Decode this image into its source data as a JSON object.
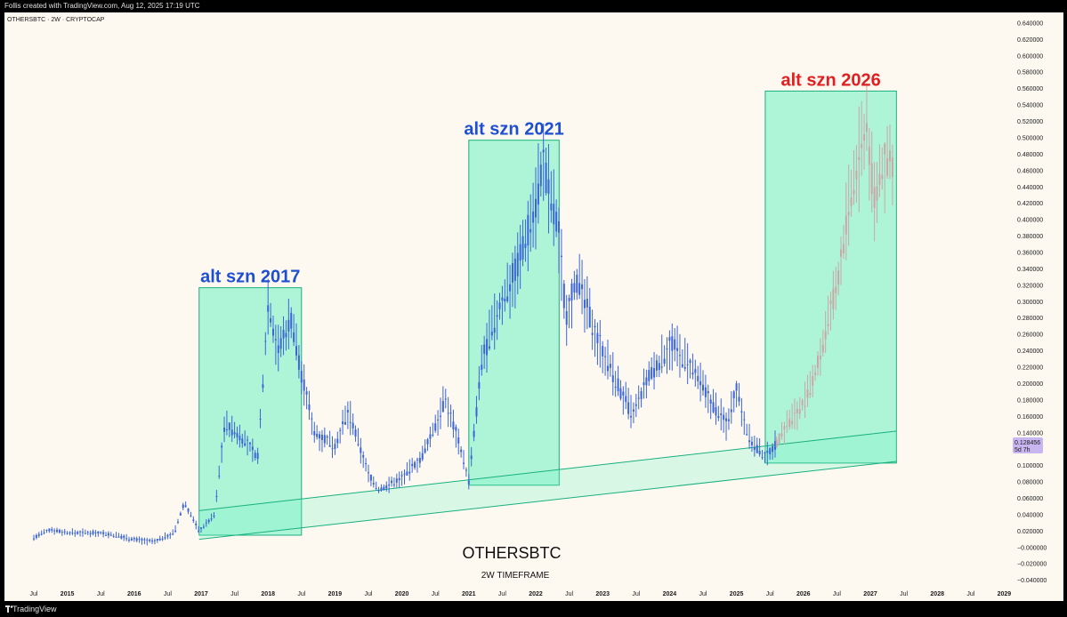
{
  "window": {
    "credit": "Follis created with TradingView.com, Aug 12, 2025 17:19 UTC",
    "brand": "TradingView"
  },
  "colors": {
    "background": "#fdf9f1",
    "candle_up": "#3a64d8",
    "candle_projection": "#c9a7a7",
    "highlight_fill": "#6ef2c2",
    "highlight_stroke": "#18b07e",
    "label_blue": "#1f4fd1",
    "label_red": "#e02020",
    "price_tag": "#c7b6f0"
  },
  "chart_data": {
    "type": "candlestick",
    "symbol_line": "OTHERSBTC · 2W · CRYPTOCAP",
    "title": "OTHERSBTC",
    "subtitle": "2W TIMEFRAME",
    "last_price": "0.128456",
    "countdown": "5d 7h",
    "ylim": [
      -0.04,
      0.65
    ],
    "y_ticks": [
      "0.640000",
      "0.620000",
      "0.600000",
      "0.580000",
      "0.560000",
      "0.540000",
      "0.520000",
      "0.500000",
      "0.480000",
      "0.460000",
      "0.440000",
      "0.420000",
      "0.400000",
      "0.380000",
      "0.360000",
      "0.340000",
      "0.320000",
      "0.300000",
      "0.280000",
      "0.260000",
      "0.240000",
      "0.220000",
      "0.200000",
      "0.180000",
      "0.160000",
      "0.140000",
      "0.120000",
      "0.100000",
      "0.080000",
      "0.060000",
      "0.040000",
      "0.020000",
      "−0.000000",
      "−0.020000",
      "−0.040000"
    ],
    "x_ticks": [
      {
        "label": "Jul",
        "t": 2014.5,
        "bold": false
      },
      {
        "label": "2015",
        "t": 2015.0,
        "bold": true
      },
      {
        "label": "Jul",
        "t": 2015.5,
        "bold": false
      },
      {
        "label": "2016",
        "t": 2016.0,
        "bold": true
      },
      {
        "label": "Jul",
        "t": 2016.5,
        "bold": false
      },
      {
        "label": "2017",
        "t": 2017.0,
        "bold": true
      },
      {
        "label": "Jul",
        "t": 2017.5,
        "bold": false
      },
      {
        "label": "2018",
        "t": 2018.0,
        "bold": true
      },
      {
        "label": "Jul",
        "t": 2018.5,
        "bold": false
      },
      {
        "label": "2019",
        "t": 2019.0,
        "bold": true
      },
      {
        "label": "Jul",
        "t": 2019.5,
        "bold": false
      },
      {
        "label": "2020",
        "t": 2020.0,
        "bold": true
      },
      {
        "label": "Jul",
        "t": 2020.5,
        "bold": false
      },
      {
        "label": "2021",
        "t": 2021.0,
        "bold": true
      },
      {
        "label": "Jul",
        "t": 2021.5,
        "bold": false
      },
      {
        "label": "2022",
        "t": 2022.0,
        "bold": true
      },
      {
        "label": "Jul",
        "t": 2022.5,
        "bold": false
      },
      {
        "label": "2023",
        "t": 2023.0,
        "bold": true
      },
      {
        "label": "Jul",
        "t": 2023.5,
        "bold": false
      },
      {
        "label": "2024",
        "t": 2024.0,
        "bold": true
      },
      {
        "label": "Jul",
        "t": 2024.5,
        "bold": false
      },
      {
        "label": "2025",
        "t": 2025.0,
        "bold": true
      },
      {
        "label": "Jul",
        "t": 2025.5,
        "bold": false
      },
      {
        "label": "2026",
        "t": 2026.0,
        "bold": true
      },
      {
        "label": "Jul",
        "t": 2026.5,
        "bold": false
      },
      {
        "label": "2027",
        "t": 2027.0,
        "bold": true
      },
      {
        "label": "Jul",
        "t": 2027.5,
        "bold": false
      },
      {
        "label": "2028",
        "t": 2028.0,
        "bold": true
      },
      {
        "label": "Jul",
        "t": 2028.5,
        "bold": false
      },
      {
        "label": "2029",
        "t": 2029.0,
        "bold": true
      }
    ],
    "highlights": [
      {
        "label": "alt szn 2017",
        "color": "blue",
        "t0": 2016.97,
        "t1": 2018.5,
        "y0": 0.015,
        "y1": 0.317
      },
      {
        "label": "alt szn 2021",
        "color": "blue",
        "t0": 2021.0,
        "t1": 2022.35,
        "y0": 0.076,
        "y1": 0.497
      },
      {
        "label": "alt szn 2026",
        "color": "red",
        "t0": 2025.43,
        "t1": 2027.39,
        "y0": 0.103,
        "y1": 0.557
      }
    ],
    "channel": {
      "upper": [
        [
          2016.97,
          0.045
        ],
        [
          2027.39,
          0.142
        ]
      ],
      "lower": [
        [
          2016.97,
          0.01
        ],
        [
          2027.39,
          0.105
        ]
      ]
    },
    "historical_path": [
      [
        2014.5,
        0.012
      ],
      [
        2014.75,
        0.022
      ],
      [
        2015.0,
        0.018
      ],
      [
        2015.5,
        0.018
      ],
      [
        2016.0,
        0.01
      ],
      [
        2016.3,
        0.007
      ],
      [
        2016.6,
        0.018
      ],
      [
        2016.75,
        0.055
      ],
      [
        2016.97,
        0.02
      ],
      [
        2017.2,
        0.04
      ],
      [
        2017.35,
        0.15
      ],
      [
        2017.6,
        0.135
      ],
      [
        2017.85,
        0.11
      ],
      [
        2018.0,
        0.3
      ],
      [
        2018.15,
        0.24
      ],
      [
        2018.35,
        0.28
      ],
      [
        2018.5,
        0.21
      ],
      [
        2018.7,
        0.14
      ],
      [
        2019.0,
        0.125
      ],
      [
        2019.2,
        0.165
      ],
      [
        2019.5,
        0.09
      ],
      [
        2019.65,
        0.07
      ],
      [
        2020.0,
        0.085
      ],
      [
        2020.3,
        0.11
      ],
      [
        2020.65,
        0.18
      ],
      [
        2020.85,
        0.13
      ],
      [
        2021.0,
        0.08
      ],
      [
        2021.2,
        0.23
      ],
      [
        2021.5,
        0.3
      ],
      [
        2021.75,
        0.35
      ],
      [
        2022.0,
        0.42
      ],
      [
        2022.1,
        0.47
      ],
      [
        2022.35,
        0.38
      ],
      [
        2022.45,
        0.28
      ],
      [
        2022.6,
        0.33
      ],
      [
        2022.9,
        0.26
      ],
      [
        2023.1,
        0.22
      ],
      [
        2023.45,
        0.16
      ],
      [
        2023.7,
        0.21
      ],
      [
        2023.9,
        0.23
      ],
      [
        2024.0,
        0.25
      ],
      [
        2024.3,
        0.22
      ],
      [
        2024.6,
        0.18
      ],
      [
        2024.85,
        0.15
      ],
      [
        2025.0,
        0.195
      ],
      [
        2025.2,
        0.13
      ],
      [
        2025.43,
        0.11
      ],
      [
        2025.6,
        0.128
      ]
    ],
    "projection_path": [
      [
        2025.6,
        0.128
      ],
      [
        2025.75,
        0.15
      ],
      [
        2025.95,
        0.17
      ],
      [
        2026.1,
        0.19
      ],
      [
        2026.3,
        0.25
      ],
      [
        2026.5,
        0.32
      ],
      [
        2026.65,
        0.4
      ],
      [
        2026.8,
        0.46
      ],
      [
        2026.95,
        0.52
      ],
      [
        2027.05,
        0.42
      ],
      [
        2027.2,
        0.47
      ],
      [
        2027.35,
        0.47
      ]
    ]
  }
}
